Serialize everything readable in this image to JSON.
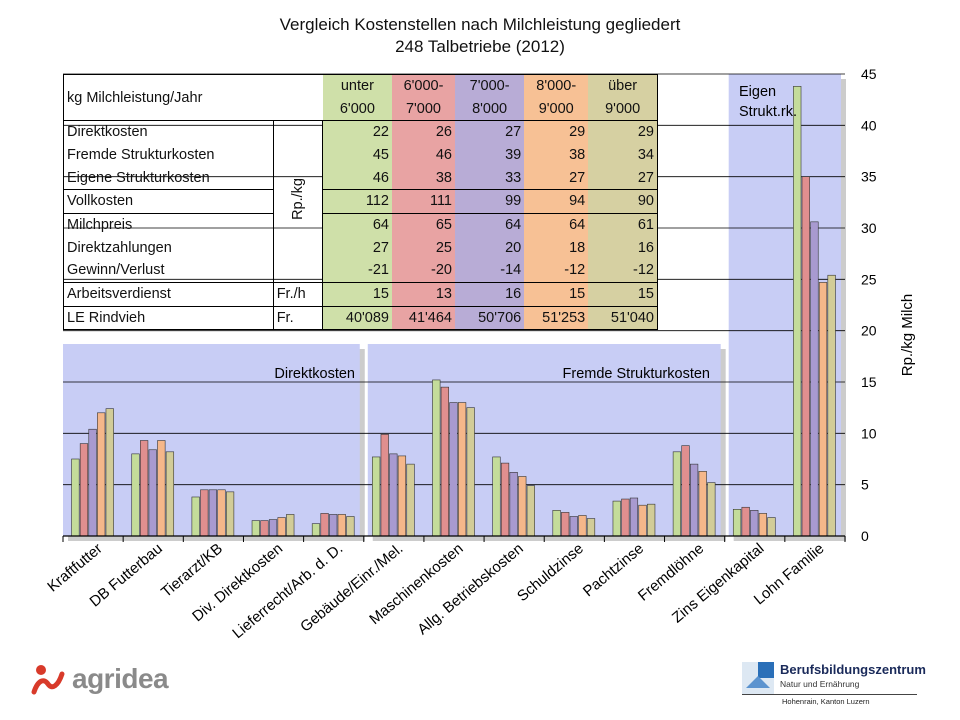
{
  "title_line1": "Vergleich Kostenstellen nach Milchleistung gegliedert",
  "title_line2": "248 Talbetriebe (2012)",
  "colors": {
    "unter6000": "#cfe0a9",
    "6000-7000": "#e8a3a3",
    "7000-8000": "#b8acd6",
    "8000-9000": "#f7c195",
    "ueber9000": "#d6d0a2",
    "panel": "#c8cdf5",
    "bar_unter6000": "#c4dc9a",
    "bar_6000-7000": "#e08f8f",
    "bar_7000-8000": "#a89ad0",
    "bar_8000-9000": "#f5b78a",
    "bar_ueber9000": "#d2cc98"
  },
  "table": {
    "header_label": "kg Milchleistung/Jahr",
    "columns": [
      {
        "line1": "unter",
        "line2": "6'000"
      },
      {
        "line1": "6'000-",
        "line2": "7'000"
      },
      {
        "line1": "7'000-",
        "line2": "8'000"
      },
      {
        "line1": "8'000-",
        "line2": "9'000"
      },
      {
        "line1": "über",
        "line2": "9'000"
      }
    ],
    "unit_rp": "Rp./kg",
    "rows": [
      {
        "label": "Direktkosten",
        "unit": "",
        "values": [
          "22",
          "26",
          "27",
          "29",
          "29"
        ]
      },
      {
        "label": "Fremde Strukturkosten",
        "unit": "",
        "values": [
          "45",
          "46",
          "39",
          "38",
          "34"
        ]
      },
      {
        "label": "Eigene Strukturkosten",
        "unit": "",
        "values": [
          "46",
          "38",
          "33",
          "27",
          "27"
        ]
      },
      {
        "label": "Vollkosten",
        "unit": "",
        "values": [
          "112",
          "111",
          "99",
          "94",
          "90"
        ]
      },
      {
        "label": "Milchpreis",
        "unit": "",
        "values": [
          "64",
          "65",
          "64",
          "64",
          "61"
        ]
      },
      {
        "label": "Direktzahlungen",
        "unit": "",
        "values": [
          "27",
          "25",
          "20",
          "18",
          "16"
        ]
      },
      {
        "label": "Gewinn/Verlust",
        "unit": "",
        "values": [
          "-21",
          "-20",
          "-14",
          "-12",
          "-12"
        ]
      },
      {
        "label": "Arbeitsverdienst",
        "unit": "Fr./h",
        "values": [
          "15",
          "13",
          "16",
          "15",
          "15"
        ]
      },
      {
        "label": "LE Rindvieh",
        "unit": "Fr.",
        "values": [
          "40'089",
          "41'464",
          "50'706",
          "51'253",
          "51'040"
        ]
      }
    ]
  },
  "chart_data": {
    "type": "bar",
    "ylabel": "Rp./kg Milch",
    "ylim": [
      0,
      45
    ],
    "yticks": [
      0,
      5,
      10,
      15,
      20,
      25,
      30,
      35,
      40,
      45
    ],
    "grid": true,
    "categories": [
      "Kraftfutter",
      "DB Futterbau",
      "Tierarzt/KB",
      "Div. Direktkosten",
      "Lieferrecht/Arb. d. D.",
      "Gebäude/Einr./Mel.",
      "Maschinenkosten",
      "Allg. Betriebskosten",
      "Schuldzinse",
      "Pachtzinse",
      "Fremdlöhne",
      "Zins Eigenkapital",
      "Lohn Familie"
    ],
    "groups": [
      {
        "label": "Direktkosten",
        "from": 0,
        "to": 4
      },
      {
        "label": "Fremde Strukturkosten",
        "from": 5,
        "to": 10
      },
      {
        "label": "Eigen Strukt.rk.",
        "from": 11,
        "to": 12
      }
    ],
    "series": [
      {
        "values": [
          7.5,
          8.0,
          3.8,
          1.5,
          1.2,
          7.7,
          15.2,
          7.7,
          2.5,
          3.4,
          8.2,
          2.6,
          43.8
        ]
      },
      {
        "values": [
          9.0,
          9.3,
          4.5,
          1.5,
          2.2,
          9.9,
          14.5,
          7.1,
          2.3,
          3.6,
          8.8,
          2.8,
          35.0
        ]
      },
      {
        "values": [
          10.4,
          8.4,
          4.5,
          1.6,
          2.1,
          8.0,
          13.0,
          6.2,
          1.9,
          3.7,
          7.0,
          2.5,
          30.6
        ]
      },
      {
        "values": [
          12.0,
          9.3,
          4.5,
          1.8,
          2.1,
          7.8,
          13.0,
          5.8,
          2.0,
          3.0,
          6.3,
          2.2,
          24.7
        ]
      },
      {
        "values": [
          12.4,
          8.2,
          4.3,
          2.1,
          1.9,
          7.0,
          12.5,
          4.9,
          1.7,
          3.1,
          5.2,
          1.8,
          25.4
        ]
      }
    ]
  },
  "logos": {
    "left_text": "agridea",
    "right_name": "Berufsbildungszentrum",
    "right_sub": "Natur und Ernährung",
    "right_location": "Hohenrain, Kanton Luzern"
  }
}
